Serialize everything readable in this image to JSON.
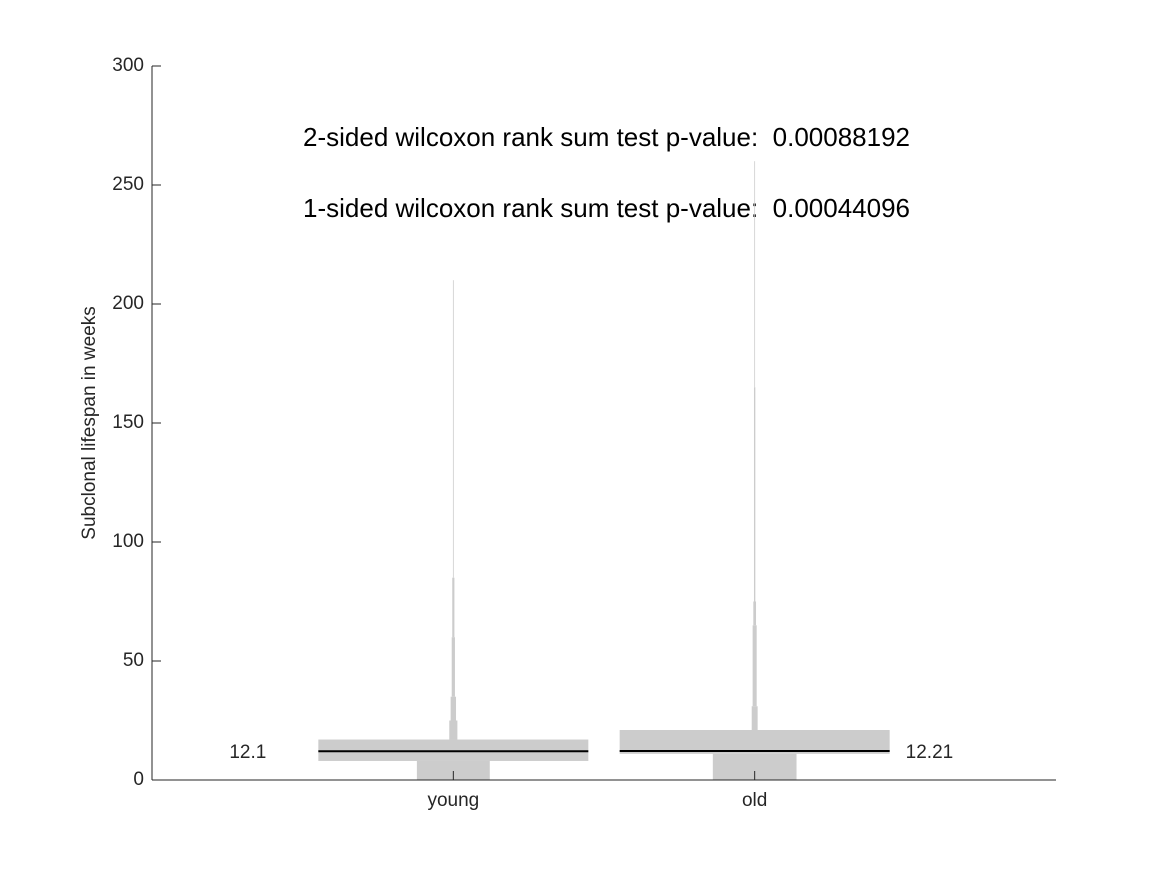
{
  "chart_data": {
    "type": "violin",
    "ylabel": "Subclonal lifespan in weeks",
    "annotations": [
      "2-sided wilcoxon rank sum test p-value:  0.00088192",
      "1-sided wilcoxon rank sum test p-value:  0.00044096"
    ],
    "categories": [
      "young",
      "old"
    ],
    "medians": [
      12.1,
      12.21
    ],
    "bins": [
      [
        0,
        8,
        17,
        25,
        35,
        60,
        85,
        210
      ],
      [
        0,
        11,
        21,
        31,
        65,
        75,
        165,
        260
      ]
    ],
    "densities": [
      [
        0.27,
        1,
        0.03,
        0.02,
        0.012,
        0.008,
        0.003
      ],
      [
        0.31,
        1,
        0.022,
        0.015,
        0.01,
        0.005,
        0.002
      ]
    ],
    "color": "#cccccc",
    "ylim": [
      0,
      300
    ],
    "yticks": [
      0,
      50,
      100,
      150,
      200,
      250,
      300
    ]
  }
}
